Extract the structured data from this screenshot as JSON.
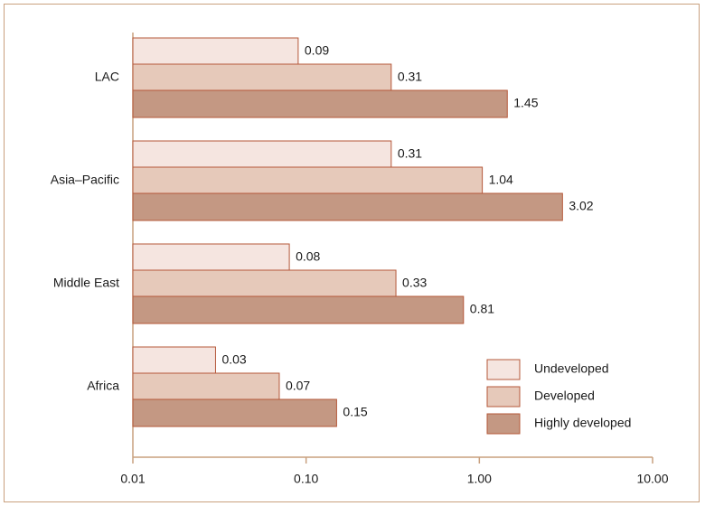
{
  "chart_data": {
    "type": "bar",
    "orientation": "horizontal",
    "x_scale": "log",
    "xlim": [
      0.01,
      10
    ],
    "x_ticks": [
      "0.01",
      "0.10",
      "1.00",
      "10.00"
    ],
    "categories": [
      "LAC",
      "Asia–Pacific",
      "Middle East",
      "Africa"
    ],
    "series": [
      {
        "name": "Undeveloped",
        "color": "#f5e5e0",
        "values": [
          0.09,
          0.31,
          0.08,
          0.03
        ],
        "labels": [
          "0.09",
          "0.31",
          "0.08",
          "0.03"
        ]
      },
      {
        "name": "Developed",
        "color": "#e6c9ba",
        "values": [
          0.31,
          1.04,
          0.33,
          0.07
        ],
        "labels": [
          "0.31",
          "1.04",
          "0.33",
          "0.07"
        ]
      },
      {
        "name": "Highly developed",
        "color": "#c49883",
        "values": [
          1.45,
          3.02,
          0.81,
          0.15
        ],
        "labels": [
          "1.45",
          "3.02",
          "0.81",
          "0.15"
        ]
      }
    ],
    "legend_position": "bottom-right",
    "grid": false
  }
}
